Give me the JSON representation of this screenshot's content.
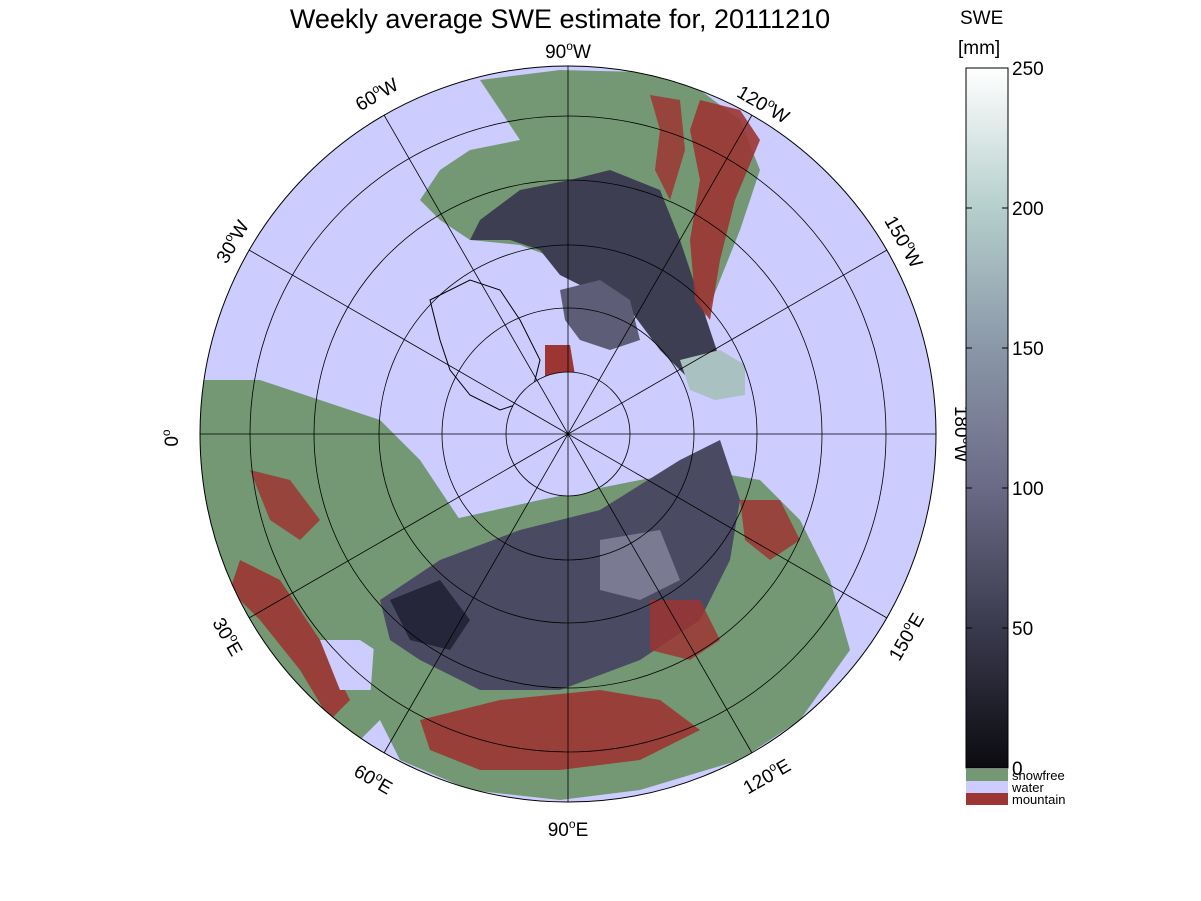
{
  "title": "Weekly average SWE estimate for, 20111210",
  "colorbar": {
    "title_line1": "SWE",
    "title_line2": "[mm]",
    "ticks": [
      "0",
      "50",
      "100",
      "150",
      "200",
      "250"
    ],
    "range": [
      0,
      250
    ],
    "colors": [
      "#0b0b10",
      "#3a3a4e",
      "#6a6a86",
      "#8a97a8",
      "#b5cfcc",
      "#ffffff"
    ]
  },
  "legend": [
    {
      "label": "snowfree",
      "color": "#739873"
    },
    {
      "label": "water",
      "color": "#ccccff"
    },
    {
      "label": "mountain",
      "color": "#9c3533"
    }
  ],
  "map": {
    "projection": "north polar stereographic",
    "meridian_labels": [
      {
        "text": "90",
        "unit": "W"
      },
      {
        "text": "120",
        "unit": "W"
      },
      {
        "text": "150",
        "unit": "W"
      },
      {
        "text": "180",
        "unit": "W"
      },
      {
        "text": "150",
        "unit": "E"
      },
      {
        "text": "120",
        "unit": "E"
      },
      {
        "text": "90",
        "unit": "E"
      },
      {
        "text": "60",
        "unit": "E"
      },
      {
        "text": "30",
        "unit": "E"
      },
      {
        "text": "0",
        "unit": ""
      },
      {
        "text": "30",
        "unit": "W"
      },
      {
        "text": "60",
        "unit": "W"
      }
    ],
    "colors": {
      "water": "#ccccff",
      "snowfree": "#739873",
      "mountain": "#9c3533",
      "snow_dark": "#2c2c3c",
      "snow_mid": "#5d5d77"
    }
  }
}
